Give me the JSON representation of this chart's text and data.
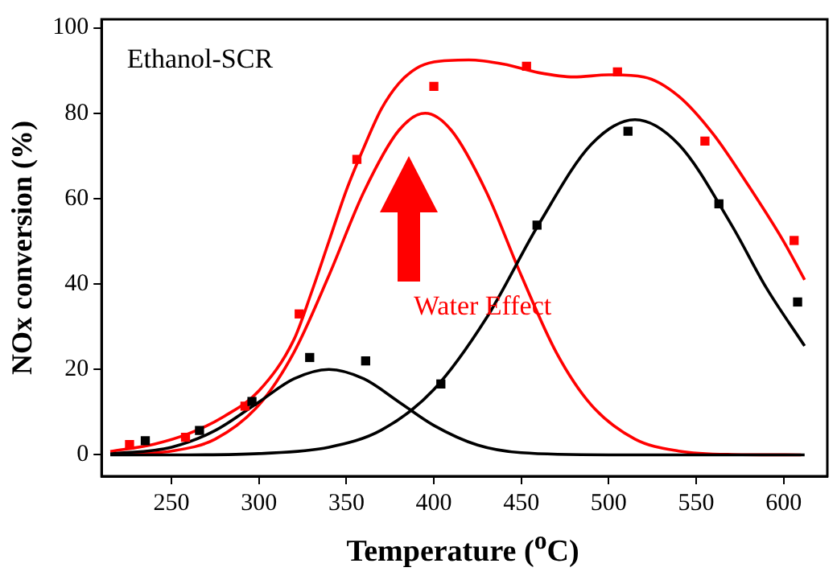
{
  "chart_data": {
    "type": "scatter",
    "xlabel": "Temperature ($^{o}$C)",
    "ylabel": "NOx conversion (%)",
    "xlim": [
      210,
      625
    ],
    "ylim": [
      -5,
      102
    ],
    "xticks": [
      250,
      300,
      350,
      400,
      450,
      500,
      550,
      600
    ],
    "yticks": [
      0,
      20,
      40,
      60,
      80,
      100
    ],
    "grid": false,
    "legend": false,
    "annotations": [
      "Ethanol-SCR",
      "Water Effect"
    ],
    "series": [
      {
        "marker": "square",
        "color": "#000000",
        "x": [
          235,
          266,
          296,
          329,
          361,
          404,
          459,
          511,
          563,
          608
        ],
        "values": [
          3.3,
          5.7,
          12.5,
          22.8,
          22,
          16.6,
          53.8,
          75.8,
          58.8,
          35.8
        ]
      },
      {
        "marker": "square",
        "color": "#ff0000",
        "x": [
          226,
          258,
          292,
          323,
          356,
          400,
          453,
          505,
          555,
          606
        ],
        "values": [
          2.4,
          4.1,
          11.4,
          33,
          69.2,
          86.3,
          91,
          89.7,
          73.5,
          50.2
        ]
      },
      {
        "type": "line",
        "color": "#000000",
        "x": [
          215,
          250,
          275,
          300,
          320,
          340,
          360,
          380,
          400,
          425,
          450,
          500,
          560,
          612
        ],
        "values": [
          0.2,
          1.8,
          5.7,
          12.4,
          17.8,
          20,
          17.8,
          12.4,
          6.9,
          2.3,
          0.5,
          0,
          0,
          0
        ]
      },
      {
        "type": "line",
        "color": "#000000",
        "x": [
          215,
          260,
          300,
          340,
          370,
          400,
          430,
          460,
          490,
          515,
          540,
          570,
          590,
          612
        ],
        "values": [
          0,
          0,
          0.3,
          1.8,
          5.8,
          15.3,
          32,
          54,
          72.7,
          78.5,
          72.7,
          54,
          39.2,
          25.5
        ]
      },
      {
        "type": "line",
        "color": "#ff0000",
        "x": [
          215,
          250,
          275,
          300,
          320,
          340,
          360,
          380,
          395,
          410,
          430,
          450,
          470,
          490,
          515,
          540,
          570,
          610
        ],
        "values": [
          0.1,
          0.9,
          3.7,
          11.7,
          24,
          42,
          61.6,
          76,
          80,
          76,
          61.6,
          42,
          24,
          11.7,
          3.7,
          0.9,
          0.1,
          0
        ]
      },
      {
        "type": "line",
        "color": "#ff0000",
        "x": [
          215,
          240,
          260,
          280,
          300,
          320,
          330,
          340,
          350,
          360,
          370,
          380,
          390,
          400,
          420,
          440,
          460,
          480,
          500,
          520,
          540,
          560,
          580,
          600,
          612
        ],
        "values": [
          0.8,
          2.5,
          5,
          9,
          15,
          27,
          38,
          50,
          62,
          72,
          81,
          87,
          90.5,
          92,
          92.5,
          91.5,
          89.5,
          88.5,
          89,
          88.5,
          84,
          75,
          63,
          50,
          41
        ]
      }
    ]
  }
}
